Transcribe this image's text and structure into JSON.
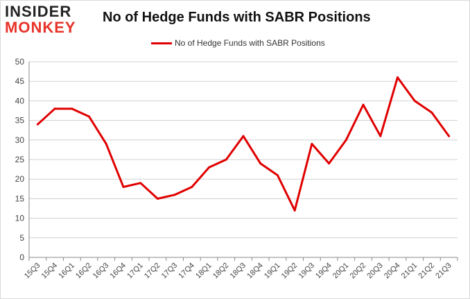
{
  "logo": {
    "line1": "INSIDER",
    "line2": "MONKEY"
  },
  "chart_data": {
    "type": "line",
    "title": "No of Hedge Funds with SABR Positions",
    "xlabel": "",
    "ylabel": "",
    "ylim": [
      0,
      50
    ],
    "yticks": [
      0,
      5,
      10,
      15,
      20,
      25,
      30,
      35,
      40,
      45,
      50
    ],
    "grid": true,
    "legend_position": "top-center",
    "categories": [
      "15Q3",
      "15Q4",
      "16Q1",
      "16Q2",
      "16Q3",
      "16Q4",
      "17Q1",
      "17Q2",
      "17Q3",
      "17Q4",
      "18Q1",
      "18Q2",
      "18Q3",
      "18Q4",
      "19Q1",
      "19Q2",
      "19Q3",
      "19Q4",
      "20Q1",
      "20Q2",
      "20Q3",
      "20Q4",
      "21Q1",
      "21Q2",
      "21Q3"
    ],
    "series": [
      {
        "name": "No of Hedge Funds with SABR Positions",
        "color": "#e00000",
        "values": [
          34,
          38,
          38,
          36,
          29,
          18,
          19,
          15,
          16,
          18,
          23,
          25,
          31,
          24,
          21,
          12,
          29,
          24,
          30,
          39,
          31,
          46,
          40,
          37,
          31
        ]
      }
    ]
  }
}
